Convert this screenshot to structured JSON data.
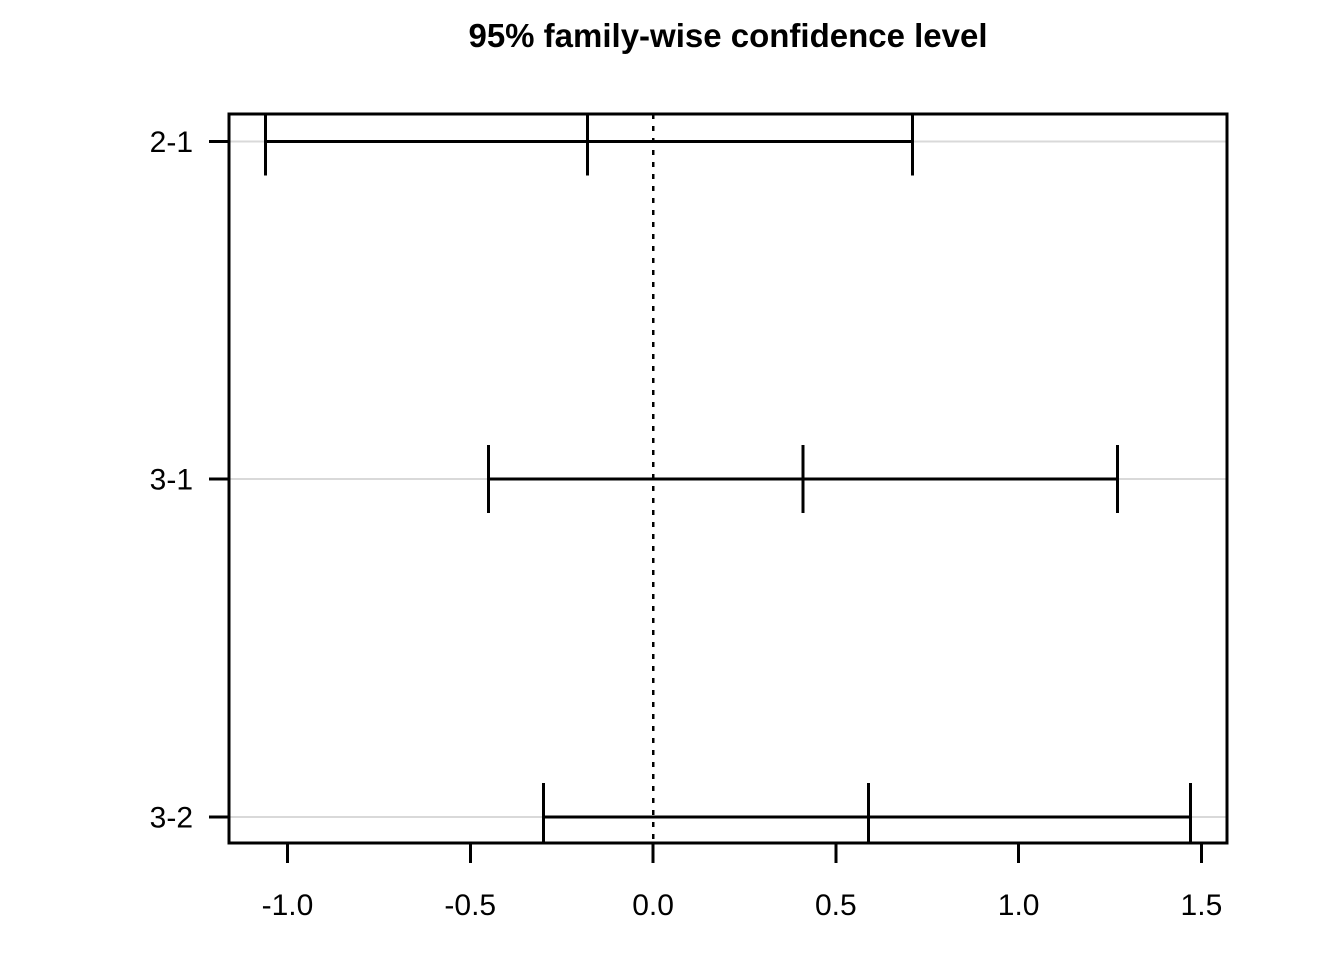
{
  "chart_data": {
    "type": "errorbar",
    "chart_kind": "tukey-hsd-family-wise-confidence-intervals",
    "orientation": "horizontal",
    "title": "95% family-wise confidence level",
    "xlabel": "",
    "ylabel": "",
    "y_categories": [
      "2-1",
      "3-1",
      "3-2"
    ],
    "series": [
      {
        "name": "2-1",
        "lower": -1.06,
        "estimate": -0.18,
        "upper": 0.71
      },
      {
        "name": "3-1",
        "lower": -0.45,
        "estimate": 0.41,
        "upper": 1.27
      },
      {
        "name": "3-2",
        "lower": -0.3,
        "estimate": 0.59,
        "upper": 1.47
      }
    ],
    "x_tick_values": [
      -1.0,
      -0.5,
      0.0,
      0.5,
      1.0,
      1.5
    ],
    "x_tick_labels": [
      "-1.0",
      "-0.5",
      "0.0",
      "0.5",
      "1.0",
      "1.5"
    ],
    "xlim": [
      -1.16,
      1.57
    ],
    "reference_line": {
      "x": 0,
      "style": "dashed"
    },
    "grid": "one light horizontal guide line per comparison",
    "legend": "none",
    "colors": {
      "interval": "#000000",
      "axis": "#000000",
      "row_guide": "#d9d9d9",
      "background": "#ffffff"
    }
  }
}
